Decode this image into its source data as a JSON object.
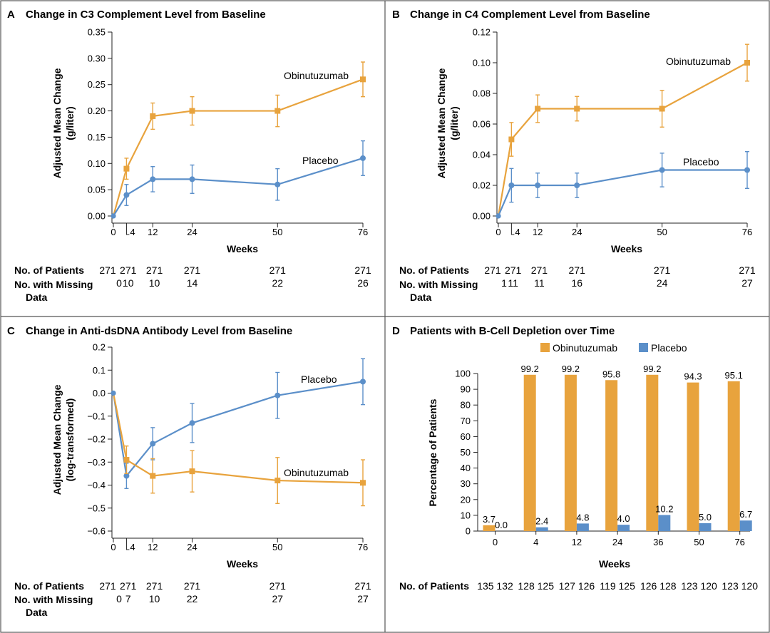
{
  "colors": {
    "obinutuzumab": "#E8A33D",
    "placebo": "#5B8FC9",
    "axis": "#222222",
    "border": "#555555"
  },
  "rows_labels": {
    "patients": "No. of Patients",
    "missing_line1": "No. with Missing",
    "missing_line2": "Data"
  },
  "chart_data": [
    {
      "id": "A",
      "type": "line",
      "letter": "A",
      "title": "Change in C3 Complement Level from Baseline",
      "xlabel": "Weeks",
      "ylabel": [
        "Adjusted Mean Change",
        "(g/liter)"
      ],
      "x_ticks": [
        "0",
        "4",
        "12",
        "24",
        "50",
        "76"
      ],
      "x_values": [
        0,
        4,
        12,
        24,
        50,
        76
      ],
      "ylim": [
        0,
        0.35
      ],
      "y_ticks": [
        "0.00",
        "0.05",
        "0.10",
        "0.15",
        "0.20",
        "0.25",
        "0.30",
        "0.35"
      ],
      "y_tick_values": [
        0,
        0.05,
        0.1,
        0.15,
        0.2,
        0.25,
        0.3,
        0.35
      ],
      "series": [
        {
          "name": "Obinutuzumab",
          "label": "Obinutuzumab",
          "marker": "square",
          "x": [
            0,
            4,
            12,
            24,
            50,
            76
          ],
          "values": [
            0,
            0.09,
            0.19,
            0.2,
            0.2,
            0.26
          ],
          "err": [
            0,
            0.02,
            0.025,
            0.027,
            0.03,
            0.033
          ]
        },
        {
          "name": "Placebo",
          "label": "Placebo",
          "marker": "circle",
          "x": [
            0,
            4,
            12,
            24,
            50,
            76
          ],
          "values": [
            0,
            0.04,
            0.07,
            0.07,
            0.06,
            0.11
          ],
          "err": [
            0,
            0.02,
            0.024,
            0.027,
            0.03,
            0.033
          ]
        }
      ],
      "patients": [
        "271",
        "271",
        "271",
        "271",
        "271",
        "271"
      ],
      "missing": [
        "0",
        "10",
        "10",
        "14",
        "22",
        "26"
      ]
    },
    {
      "id": "B",
      "type": "line",
      "letter": "B",
      "title": "Change in C4 Complement Level from Baseline",
      "xlabel": "Weeks",
      "ylabel": [
        "Adjusted Mean Change",
        "(g/liter)"
      ],
      "x_ticks": [
        "0",
        "4",
        "12",
        "24",
        "50",
        "76"
      ],
      "x_values": [
        0,
        4,
        12,
        24,
        50,
        76
      ],
      "ylim": [
        0,
        0.12
      ],
      "y_ticks": [
        "0.00",
        "0.02",
        "0.04",
        "0.06",
        "0.08",
        "0.10",
        "0.12"
      ],
      "y_tick_values": [
        0,
        0.02,
        0.04,
        0.06,
        0.08,
        0.1,
        0.12
      ],
      "series": [
        {
          "name": "Obinutuzumab",
          "label": "Obinutuzumab",
          "marker": "square",
          "x": [
            0,
            4,
            12,
            24,
            50,
            76
          ],
          "values": [
            0,
            0.05,
            0.07,
            0.07,
            0.07,
            0.1
          ],
          "err": [
            0,
            0.011,
            0.009,
            0.008,
            0.012,
            0.012
          ]
        },
        {
          "name": "Placebo",
          "label": "Placebo",
          "marker": "circle",
          "x": [
            0,
            4,
            12,
            24,
            50,
            76
          ],
          "values": [
            0,
            0.02,
            0.02,
            0.02,
            0.03,
            0.03
          ],
          "err": [
            0,
            0.011,
            0.008,
            0.008,
            0.011,
            0.012
          ]
        }
      ],
      "patients": [
        "271",
        "271",
        "271",
        "271",
        "271",
        "271"
      ],
      "missing": [
        "1",
        "11",
        "11",
        "16",
        "24",
        "27"
      ]
    },
    {
      "id": "C",
      "type": "line",
      "letter": "C",
      "title": "Change in Anti-dsDNA Antibody Level from Baseline",
      "xlabel": "Weeks",
      "ylabel": [
        "Adjusted Mean Change",
        "(log-transformed)"
      ],
      "x_ticks": [
        "0",
        "4",
        "12",
        "24",
        "50",
        "76"
      ],
      "x_values": [
        0,
        4,
        12,
        24,
        50,
        76
      ],
      "ylim": [
        -0.6,
        0.2
      ],
      "y_ticks": [
        "−0.6",
        "−0.5",
        "−0.4",
        "−0.3",
        "−0.2",
        "−0.1",
        "0.0",
        "0.1",
        "0.2"
      ],
      "y_tick_values": [
        -0.6,
        -0.5,
        -0.4,
        -0.3,
        -0.2,
        -0.1,
        0,
        0.1,
        0.2
      ],
      "series": [
        {
          "name": "Placebo",
          "label": "Placebo",
          "marker": "circle",
          "x": [
            0,
            4,
            12,
            24,
            50,
            76
          ],
          "values": [
            0,
            -0.36,
            -0.22,
            -0.13,
            -0.01,
            0.05
          ],
          "err": [
            0,
            0.055,
            0.07,
            0.085,
            0.1,
            0.1
          ]
        },
        {
          "name": "Obinutuzumab",
          "label": "Obinutuzumab",
          "marker": "square",
          "x": [
            0,
            4,
            12,
            24,
            50,
            76
          ],
          "values": [
            0,
            -0.29,
            -0.36,
            -0.34,
            -0.38,
            -0.39
          ],
          "err": [
            0,
            0.06,
            0.075,
            0.09,
            0.1,
            0.1
          ]
        }
      ],
      "patients": [
        "271",
        "271",
        "271",
        "271",
        "271",
        "271"
      ],
      "missing": [
        "0",
        "7",
        "10",
        "22",
        "27",
        "27"
      ]
    },
    {
      "id": "D",
      "type": "bar",
      "letter": "D",
      "title": "Patients with B-Cell Depletion over Time",
      "xlabel": "Weeks",
      "ylabel": [
        "Percentage of Patients"
      ],
      "categories": [
        "0",
        "4",
        "12",
        "24",
        "36",
        "50",
        "76"
      ],
      "ylim": [
        0,
        100
      ],
      "y_ticks": [
        "0",
        "10",
        "20",
        "30",
        "40",
        "50",
        "60",
        "70",
        "80",
        "90",
        "100"
      ],
      "y_tick_values": [
        0,
        10,
        20,
        30,
        40,
        50,
        60,
        70,
        80,
        90,
        100
      ],
      "legend": [
        "Obinutuzumab",
        "Placebo"
      ],
      "series": [
        {
          "name": "Obinutuzumab",
          "values": [
            3.7,
            99.2,
            99.2,
            95.8,
            99.2,
            94.3,
            95.1
          ],
          "labels": [
            "3.7",
            "99.2",
            "99.2",
            "95.8",
            "99.2",
            "94.3",
            "95.1"
          ]
        },
        {
          "name": "Placebo",
          "values": [
            0.0,
            2.4,
            4.8,
            4.0,
            10.2,
            5.0,
            6.7
          ],
          "labels": [
            "0.0",
            "2.4",
            "4.8",
            "4.0",
            "10.2",
            "5.0",
            "6.7"
          ]
        }
      ],
      "patients": [
        "135 132",
        "128 125",
        "127 126",
        "119 125",
        "126 128",
        "123 120",
        "123 120"
      ]
    }
  ]
}
